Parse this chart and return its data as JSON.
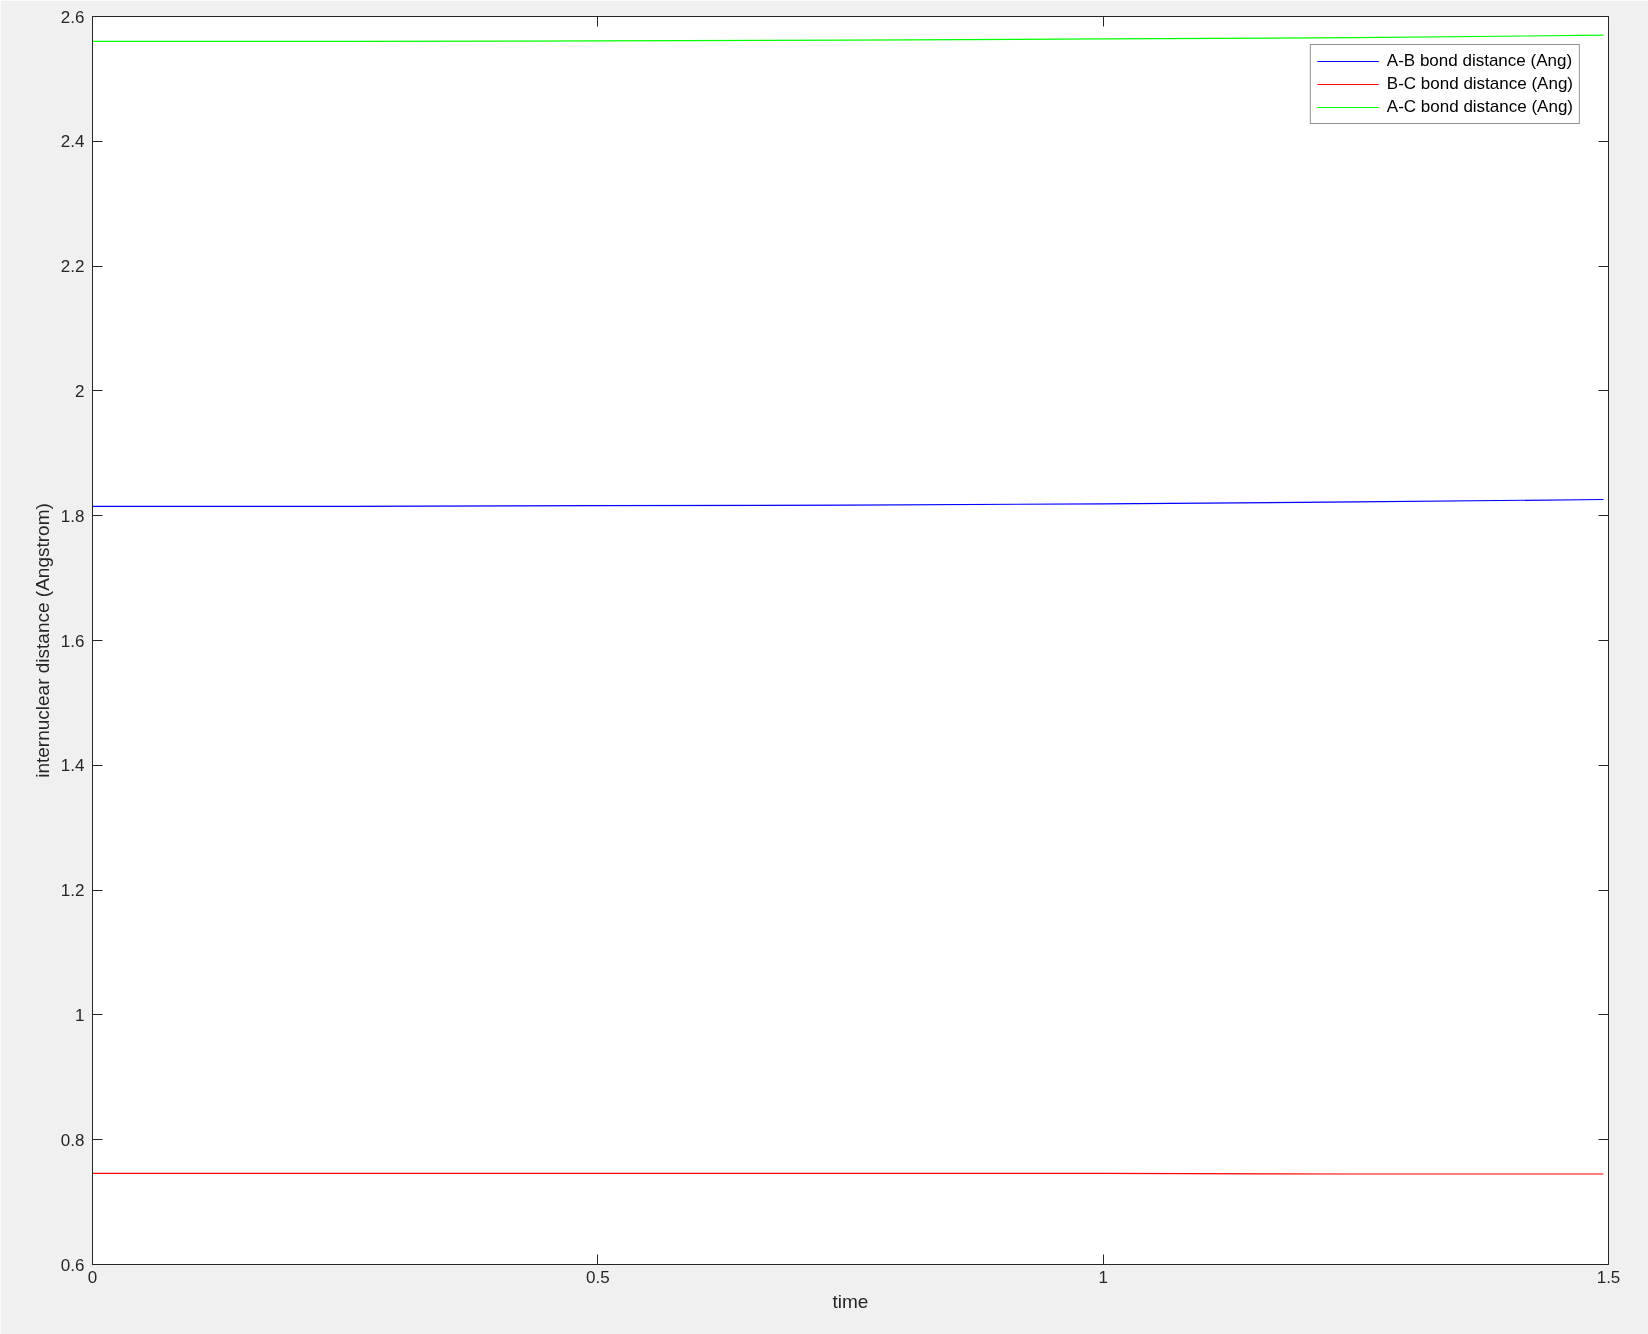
{
  "chart_data": {
    "type": "line",
    "xlabel": "time",
    "ylabel": "internuclear distance (Angstrom)",
    "x": [
      0,
      0.25,
      0.5,
      0.75,
      1.0,
      1.25,
      1.495
    ],
    "series": [
      {
        "name": "A-B bond distance (Ang)",
        "color": "#0000ff",
        "values": [
          1.815,
          1.815,
          1.816,
          1.817,
          1.819,
          1.822,
          1.826
        ]
      },
      {
        "name": "B-C bond distance (Ang)",
        "color": "#ff0000",
        "values": [
          0.746,
          0.746,
          0.746,
          0.746,
          0.746,
          0.745,
          0.745
        ]
      },
      {
        "name": "A-C bond distance (Ang)",
        "color": "#00ff00",
        "values": [
          2.56,
          2.56,
          2.561,
          2.562,
          2.564,
          2.566,
          2.57
        ]
      }
    ],
    "xlim": [
      0,
      1.5
    ],
    "xticks": [
      0,
      0.5,
      1,
      1.5
    ],
    "ylim": [
      0.6,
      2.6
    ],
    "yticks": [
      0.6,
      0.8,
      1,
      1.2,
      1.4,
      1.6,
      1.8,
      2,
      2.2,
      2.4,
      2.6
    ],
    "grid": false,
    "legend": "top right",
    "line_style": "solid"
  }
}
